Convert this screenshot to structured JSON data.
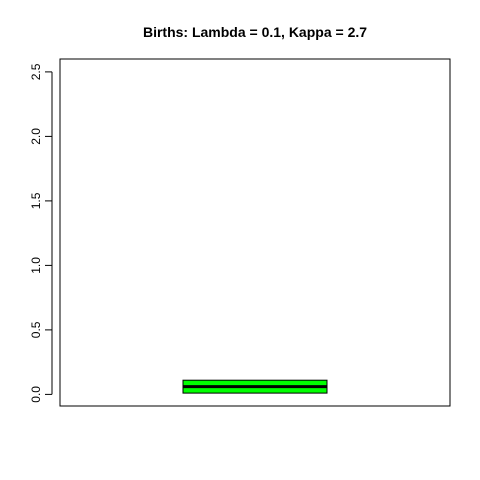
{
  "chart_data": {
    "type": "boxplot",
    "title": "Births: Lambda = 0.1, Kappa =  2.7",
    "xlabel": "",
    "ylabel": "",
    "ylim": [
      -0.09,
      2.6
    ],
    "y_ticks": [
      0.0,
      0.5,
      1.0,
      1.5,
      2.0,
      2.5
    ],
    "y_tick_labels": [
      "0.0",
      "0.5",
      "1.0",
      "1.5",
      "2.0",
      "2.5"
    ],
    "grid": false,
    "legend": "none",
    "series": [
      {
        "q1": 0.01,
        "median": 0.06,
        "q3": 0.11,
        "whisker_low": 0.01,
        "whisker_high": 0.11,
        "fill_color": "#00ff00",
        "line_color": "#000000"
      }
    ]
  }
}
